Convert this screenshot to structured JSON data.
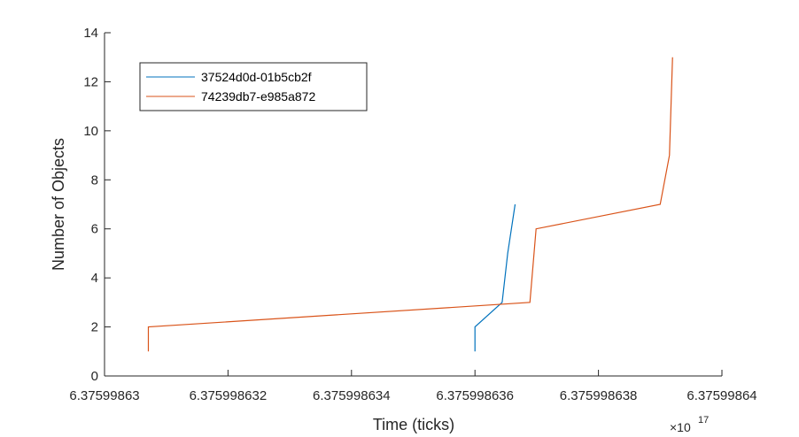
{
  "chart_data": {
    "type": "line",
    "xlabel": "Time (ticks)",
    "ylabel": "Number of Objects",
    "x_exponent_label": "×10",
    "x_exponent_power": "17",
    "xlim": [
      6.37599863,
      6.37599864
    ],
    "ylim": [
      0,
      14
    ],
    "x_ticks": [
      6.37599863,
      6.375998632,
      6.375998634,
      6.375998636,
      6.375998638,
      6.37599864
    ],
    "x_tick_labels": [
      "6.37599863",
      "6.375998632",
      "6.375998634",
      "6.375998636",
      "6.375998638",
      "6.37599864"
    ],
    "y_ticks": [
      0,
      2,
      4,
      6,
      8,
      10,
      12,
      14
    ],
    "y_tick_labels": [
      "0",
      "2",
      "4",
      "6",
      "8",
      "10",
      "12",
      "14"
    ],
    "grid": false,
    "legend_position": "top-left",
    "series": [
      {
        "name": "37524d0d-01b5cb2f",
        "color": "#0072BD",
        "x": [
          6.375998636,
          6.375998636,
          6.37599863644,
          6.37599863653,
          6.37599863665
        ],
        "y": [
          1,
          2,
          3,
          5,
          7
        ]
      },
      {
        "name": "74239db7-e985a872",
        "color": "#D95319",
        "x": [
          6.37599863071,
          6.37599863071,
          6.37599863689,
          6.37599863699,
          6.375998639,
          6.37599863915,
          6.3759986392
        ],
        "y": [
          1,
          2,
          3,
          6,
          7,
          9,
          13
        ]
      }
    ]
  }
}
